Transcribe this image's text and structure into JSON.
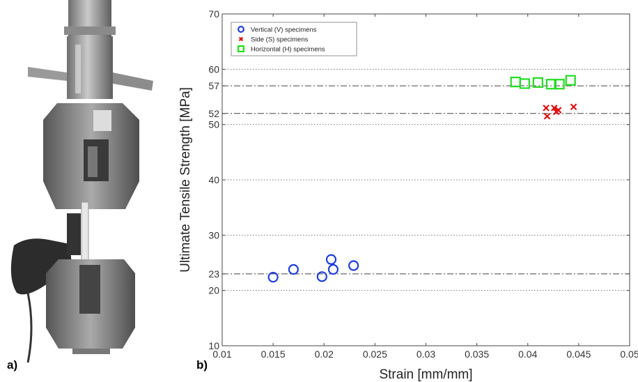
{
  "panels": {
    "a_label": "a)",
    "b_label": "b)"
  },
  "photo": {
    "description_icon": "tensile-testing-machine-icon"
  },
  "chart_data": {
    "type": "scatter",
    "xlabel": "Strain [mm/mm]",
    "ylabel": "Ultimate Tensile Strength [MPa]",
    "xlim": [
      0.01,
      0.05
    ],
    "ylim": [
      10,
      70
    ],
    "xticks": [
      0.01,
      0.015,
      0.02,
      0.025,
      0.03,
      0.035,
      0.04,
      0.045,
      0.05
    ],
    "xtick_labels": [
      "0.01",
      "0.015",
      "0.02",
      "0.025",
      "0.03",
      "0.035",
      "0.04",
      "0.045",
      "0.05"
    ],
    "yticks": [
      10,
      20,
      23,
      30,
      40,
      50,
      52,
      57,
      60,
      70
    ],
    "ytick_labels": [
      "10",
      "20",
      "23",
      "30",
      "40",
      "50",
      "52",
      "57",
      "60",
      "70"
    ],
    "gridlines": {
      "dotted": [
        20,
        30,
        40,
        50,
        60
      ],
      "dashdot": [
        23,
        52,
        57
      ]
    },
    "legend_position": "top-left",
    "series": [
      {
        "name": "Vertical (V) specimens",
        "marker": "circle",
        "color": "#1f3fd8",
        "points": [
          [
            0.015,
            22.4
          ],
          [
            0.017,
            23.8
          ],
          [
            0.0198,
            22.5
          ],
          [
            0.0207,
            25.6
          ],
          [
            0.0209,
            23.8
          ],
          [
            0.0229,
            24.5
          ]
        ]
      },
      {
        "name": "Side (S) specimens",
        "marker": "x",
        "color": "#e01010",
        "points": [
          [
            0.0418,
            53.0
          ],
          [
            0.0419,
            51.5
          ],
          [
            0.0426,
            53.0
          ],
          [
            0.0428,
            52.3
          ],
          [
            0.043,
            52.6
          ],
          [
            0.0445,
            53.2
          ]
        ]
      },
      {
        "name": "Horizontal (H) specimens",
        "marker": "square",
        "color": "#22dd22",
        "points": [
          [
            0.0388,
            57.7
          ],
          [
            0.0397,
            57.4
          ],
          [
            0.041,
            57.6
          ],
          [
            0.0423,
            57.3
          ],
          [
            0.0431,
            57.3
          ],
          [
            0.0442,
            58.0
          ]
        ]
      }
    ]
  }
}
